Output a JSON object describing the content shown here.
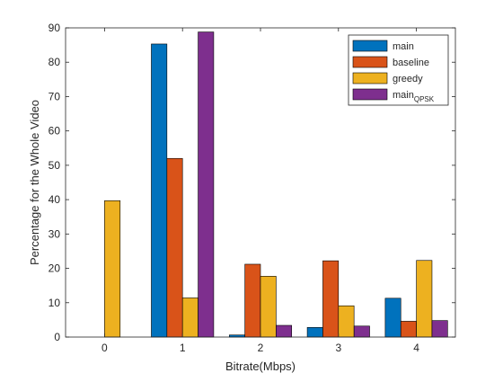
{
  "chart_data": {
    "type": "bar",
    "title": "",
    "xlabel": "Bitrate(Mbps)",
    "ylabel": "Percentage for the Whole Video",
    "categories": [
      "0",
      "1",
      "2",
      "3",
      "4"
    ],
    "x": [
      0,
      1,
      2,
      3,
      4
    ],
    "xlim": [
      -0.5,
      4.5
    ],
    "ylim": [
      0,
      90
    ],
    "yticks": [
      0,
      10,
      20,
      30,
      40,
      50,
      60,
      70,
      80,
      90
    ],
    "grid": false,
    "legend_position": "top-right",
    "series": [
      {
        "name": "main",
        "color": "#0072BD",
        "values": [
          0,
          85.3,
          0.6,
          2.8,
          11.3
        ]
      },
      {
        "name": "baseline",
        "color": "#D95319",
        "values": [
          0,
          52,
          21.2,
          22.2,
          4.6
        ]
      },
      {
        "name": "greedy",
        "color": "#EDB120",
        "values": [
          39.7,
          11.4,
          17.7,
          9.1,
          22.3
        ]
      },
      {
        "name": "main",
        "name_subscript": "QPSK",
        "color": "#7E2F8E",
        "values": [
          0,
          88.8,
          3.4,
          3.2,
          4.8
        ]
      }
    ]
  }
}
